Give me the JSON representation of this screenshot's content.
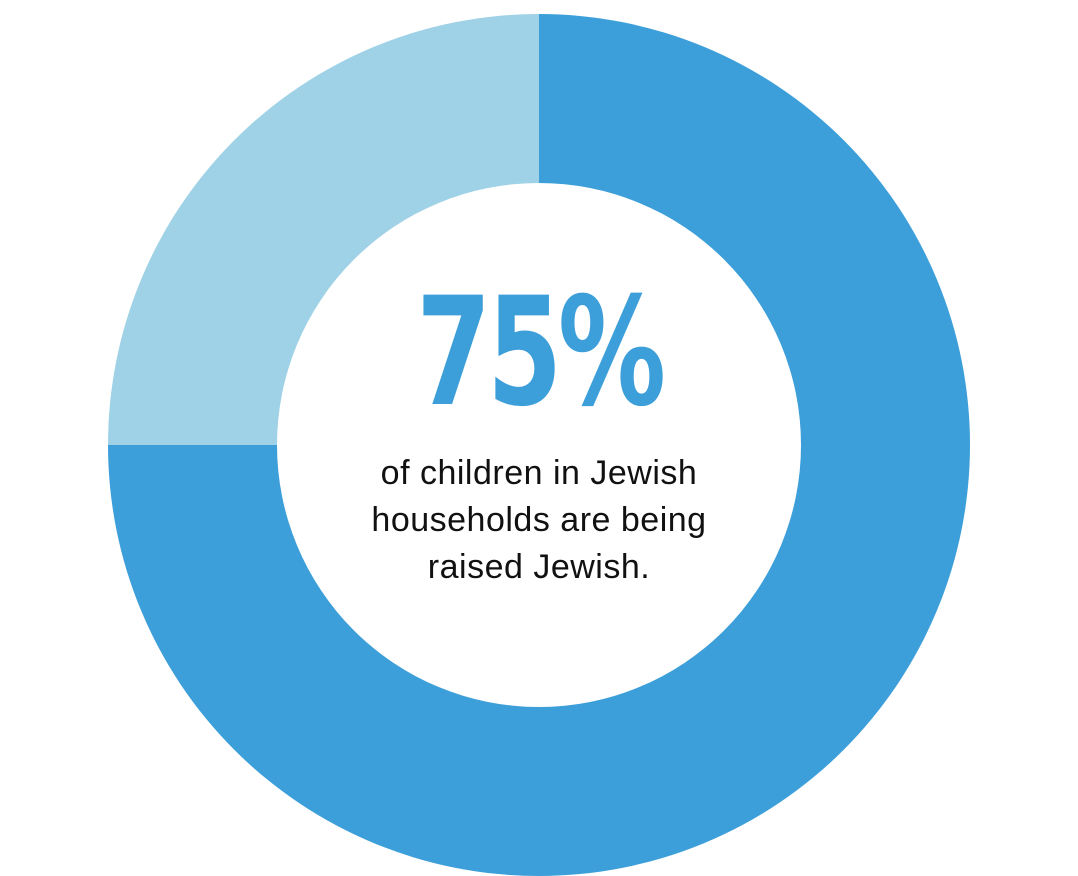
{
  "chart_data": {
    "type": "pie",
    "donut": true,
    "slices": [
      {
        "label": "",
        "value": 75,
        "color": "#3d9fda"
      },
      {
        "label": "",
        "value": 25,
        "color": "#9fd2e6"
      }
    ],
    "center_value": "75%",
    "center_caption_lines": [
      "of children in Jewish",
      "households are being",
      "raised Jewish."
    ]
  },
  "colors": {
    "primary": "#3d9fda",
    "secondary": "#9fd2e6",
    "text": "#111111",
    "background": "#ffffff"
  }
}
